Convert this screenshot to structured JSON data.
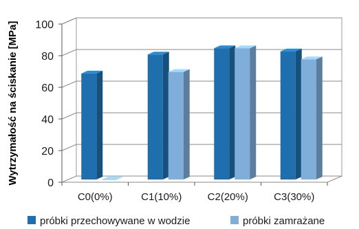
{
  "chart_data": {
    "type": "bar",
    "title": "",
    "xlabel": "",
    "ylabel": "Wytrzymałość na ściskanie [MPa]",
    "ylim": [
      0,
      100
    ],
    "yticks": [
      "0",
      "20",
      "40",
      "60",
      "80",
      "100"
    ],
    "grid": true,
    "legend_position": "bottom",
    "categories": [
      "C0(0%)",
      "C1(10%)",
      "C2(20%)",
      "C3(30%)"
    ],
    "series": [
      {
        "name": "próbki przechowywane w wodzie",
        "values": [
          67,
          79,
          83,
          81
        ],
        "color": "#1f6fae"
      },
      {
        "name": "próbki zamrażane",
        "values": [
          0,
          68,
          83,
          76
        ],
        "color": "#7faedb"
      }
    ]
  }
}
